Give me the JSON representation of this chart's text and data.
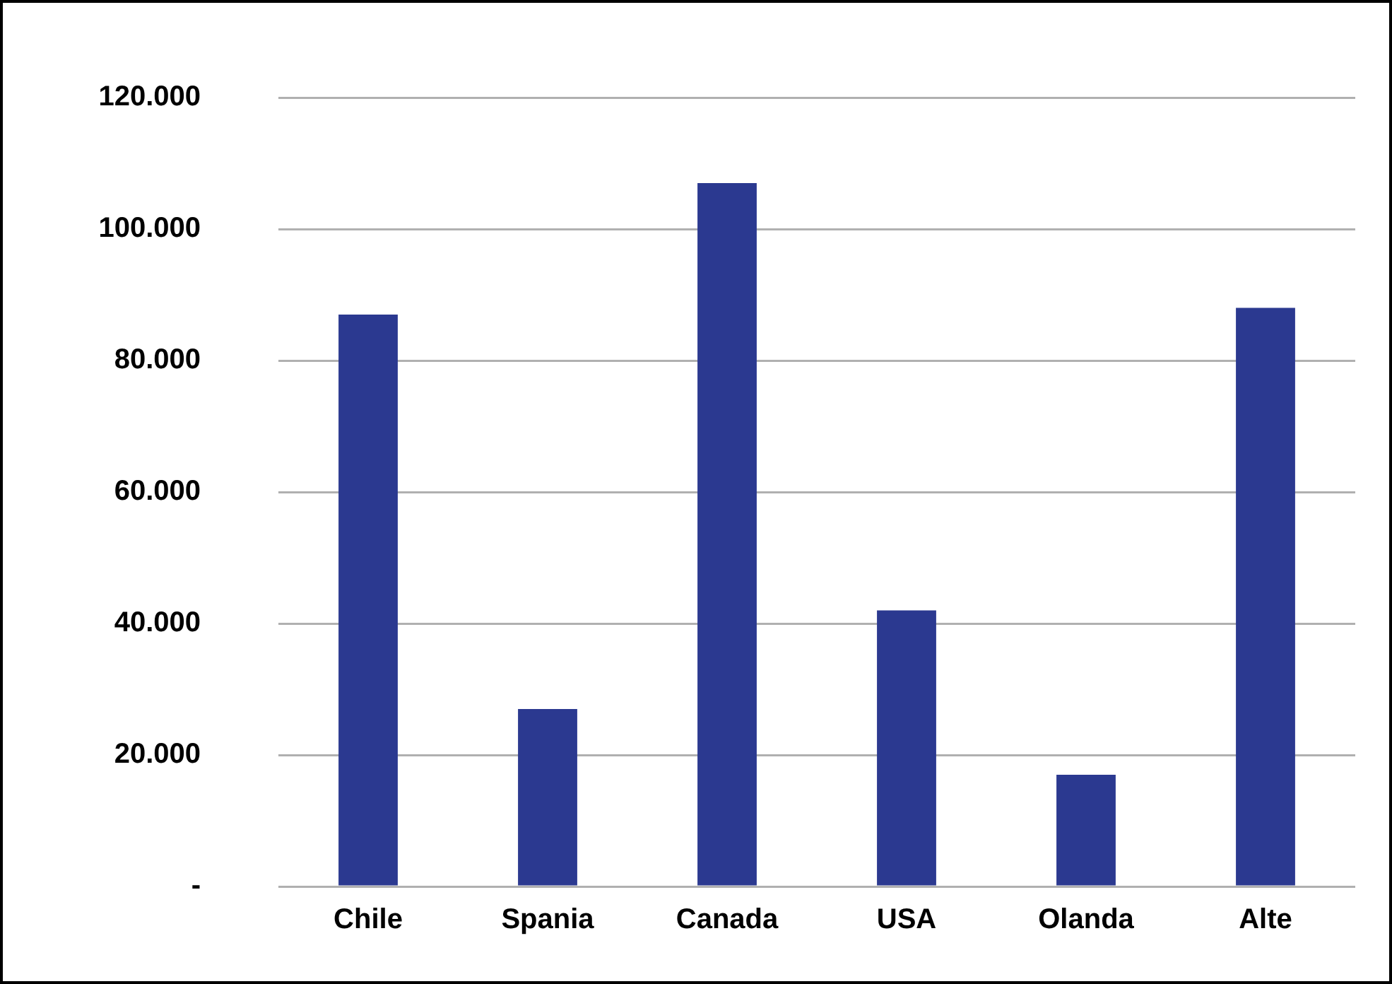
{
  "chart_data": {
    "type": "bar",
    "categories": [
      "Chile",
      "Spania",
      "Canada",
      "USA",
      "Olanda",
      "Alte"
    ],
    "values": [
      87000,
      27000,
      107000,
      42000,
      17000,
      88000
    ],
    "color": "#2b3990",
    "ylim": [
      0,
      120000
    ],
    "yticks": [
      {
        "value": 0,
        "label": "-"
      },
      {
        "value": 20000,
        "label": "20.000"
      },
      {
        "value": 40000,
        "label": "40.000"
      },
      {
        "value": 60000,
        "label": "60.000"
      },
      {
        "value": 80000,
        "label": "80.000"
      },
      {
        "value": 100000,
        "label": "100.000"
      },
      {
        "value": 120000,
        "label": "120.000"
      }
    ],
    "grid": "y",
    "legend": false
  }
}
